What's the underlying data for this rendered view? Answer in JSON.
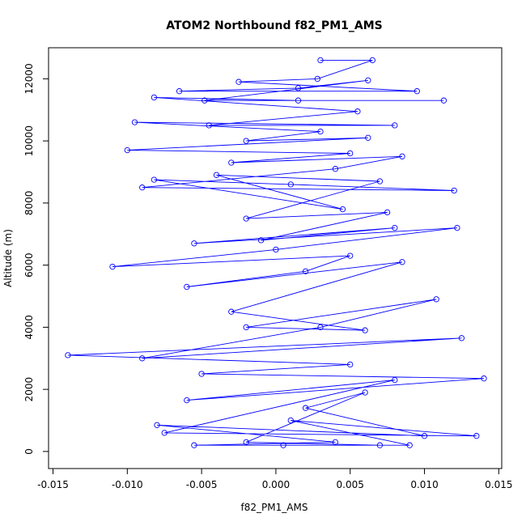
{
  "chart_data": {
    "type": "line",
    "title": "ATOM2 Northbound f82_PM1_AMS",
    "xlabel": "f82_PM1_AMS",
    "ylabel": "Altitude (m)",
    "xlim": [
      -0.0153,
      0.0152
    ],
    "ylim": [
      -550,
      13000
    ],
    "xticks": [
      -0.015,
      -0.01,
      -0.005,
      0.0,
      0.005,
      0.01,
      0.015
    ],
    "xtick_labels": [
      "-0.015",
      "-0.010",
      "-0.005",
      "0.000",
      "0.005",
      "0.010",
      "0.015"
    ],
    "yticks": [
      0,
      2000,
      4000,
      6000,
      8000,
      10000,
      12000
    ],
    "ytick_labels": [
      "0",
      "2000",
      "4000",
      "6000",
      "8000",
      "10000",
      "12000"
    ],
    "grid": false,
    "line_style": "lines and open circles",
    "colors": {
      "series": "#0000ff",
      "axis": "#000000"
    },
    "series": [
      {
        "points": [
          [
            0.003,
            12600
          ],
          [
            0.0065,
            12600
          ],
          [
            0.0028,
            12000
          ],
          [
            -0.0025,
            11900
          ],
          [
            0.0095,
            11600
          ],
          [
            -0.0065,
            11600
          ],
          [
            0.0015,
            11700
          ],
          [
            0.0062,
            11950
          ],
          [
            -0.0048,
            11300
          ],
          [
            0.0113,
            11300
          ],
          [
            0.0015,
            11300
          ],
          [
            -0.0082,
            11400
          ],
          [
            0.0055,
            10950
          ],
          [
            -0.0045,
            10500
          ],
          [
            0.008,
            10500
          ],
          [
            -0.0095,
            10600
          ],
          [
            0.003,
            10300
          ],
          [
            -0.002,
            10000
          ],
          [
            0.0062,
            10100
          ],
          [
            -0.01,
            9700
          ],
          [
            0.005,
            9600
          ],
          [
            -0.003,
            9300
          ],
          [
            0.0085,
            9500
          ],
          [
            0.004,
            9100
          ],
          [
            -0.009,
            8500
          ],
          [
            0.012,
            8400
          ],
          [
            0.001,
            8600
          ],
          [
            -0.0082,
            8750
          ],
          [
            0.0045,
            7800
          ],
          [
            -0.004,
            8900
          ],
          [
            0.007,
            8700
          ],
          [
            -0.002,
            7500
          ],
          [
            0.0075,
            7700
          ],
          [
            -0.001,
            6800
          ],
          [
            0.008,
            7200
          ],
          [
            -0.0055,
            6700
          ],
          [
            0.0122,
            7200
          ],
          [
            0.0,
            6500
          ],
          [
            -0.011,
            5950
          ],
          [
            0.005,
            6300
          ],
          [
            0.002,
            5800
          ],
          [
            -0.006,
            5300
          ],
          [
            0.0085,
            6100
          ],
          [
            -0.003,
            4500
          ],
          [
            0.006,
            3900
          ],
          [
            -0.002,
            4000
          ],
          [
            0.0108,
            4900
          ],
          [
            0.003,
            4000
          ],
          [
            -0.009,
            3000
          ],
          [
            0.0125,
            3650
          ],
          [
            -0.014,
            3100
          ],
          [
            0.005,
            2800
          ],
          [
            -0.005,
            2500
          ],
          [
            0.014,
            2350
          ],
          [
            -0.006,
            1650
          ],
          [
            0.008,
            2300
          ],
          [
            -0.0075,
            600
          ],
          [
            0.0135,
            500
          ],
          [
            0.001,
            1000
          ],
          [
            0.009,
            200
          ],
          [
            -0.0055,
            200
          ],
          [
            0.004,
            300
          ],
          [
            -0.008,
            850
          ],
          [
            0.01,
            500
          ],
          [
            0.002,
            1400
          ],
          [
            0.006,
            1900
          ],
          [
            -0.002,
            300
          ],
          [
            0.007,
            200
          ],
          [
            0.0005,
            200
          ]
        ]
      }
    ]
  }
}
